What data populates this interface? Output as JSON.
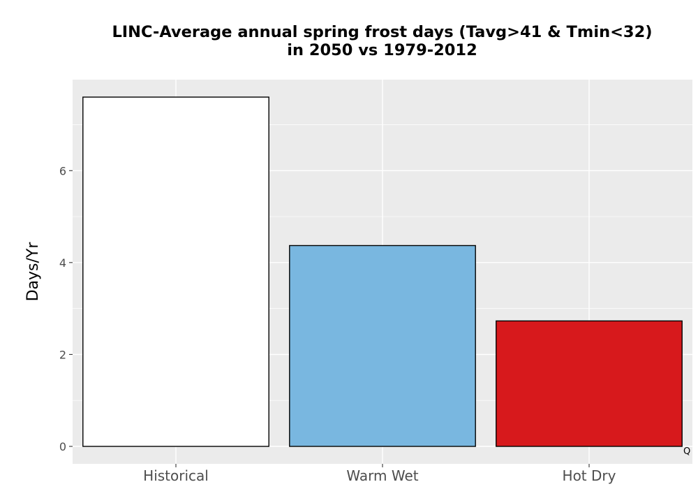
{
  "title_line_1": "LINC-Average annual spring frost days (Tavg>41 & Tmin<32)",
  "title_line_2": "in 2050 vs 1979-2012",
  "corner_mark": "Q",
  "chart_data": {
    "type": "bar",
    "title": "LINC-Average annual spring frost days (Tavg>41 & Tmin<32) in 2050 vs 1979-2012",
    "xlabel": "",
    "ylabel": "Days/Yr",
    "categories": [
      "Historical",
      "Warm Wet",
      "Hot Dry"
    ],
    "values": [
      7.6,
      4.37,
      2.73
    ],
    "colors": [
      "#ffffff",
      "#79b7e0",
      "#d7191c"
    ],
    "ylim": [
      -0.38,
      7.98
    ],
    "yticks": [
      0,
      2,
      4,
      6
    ],
    "grid": true,
    "legend": "none",
    "panel_background": "#ebebeb",
    "gridline_color": "#ffffff"
  }
}
